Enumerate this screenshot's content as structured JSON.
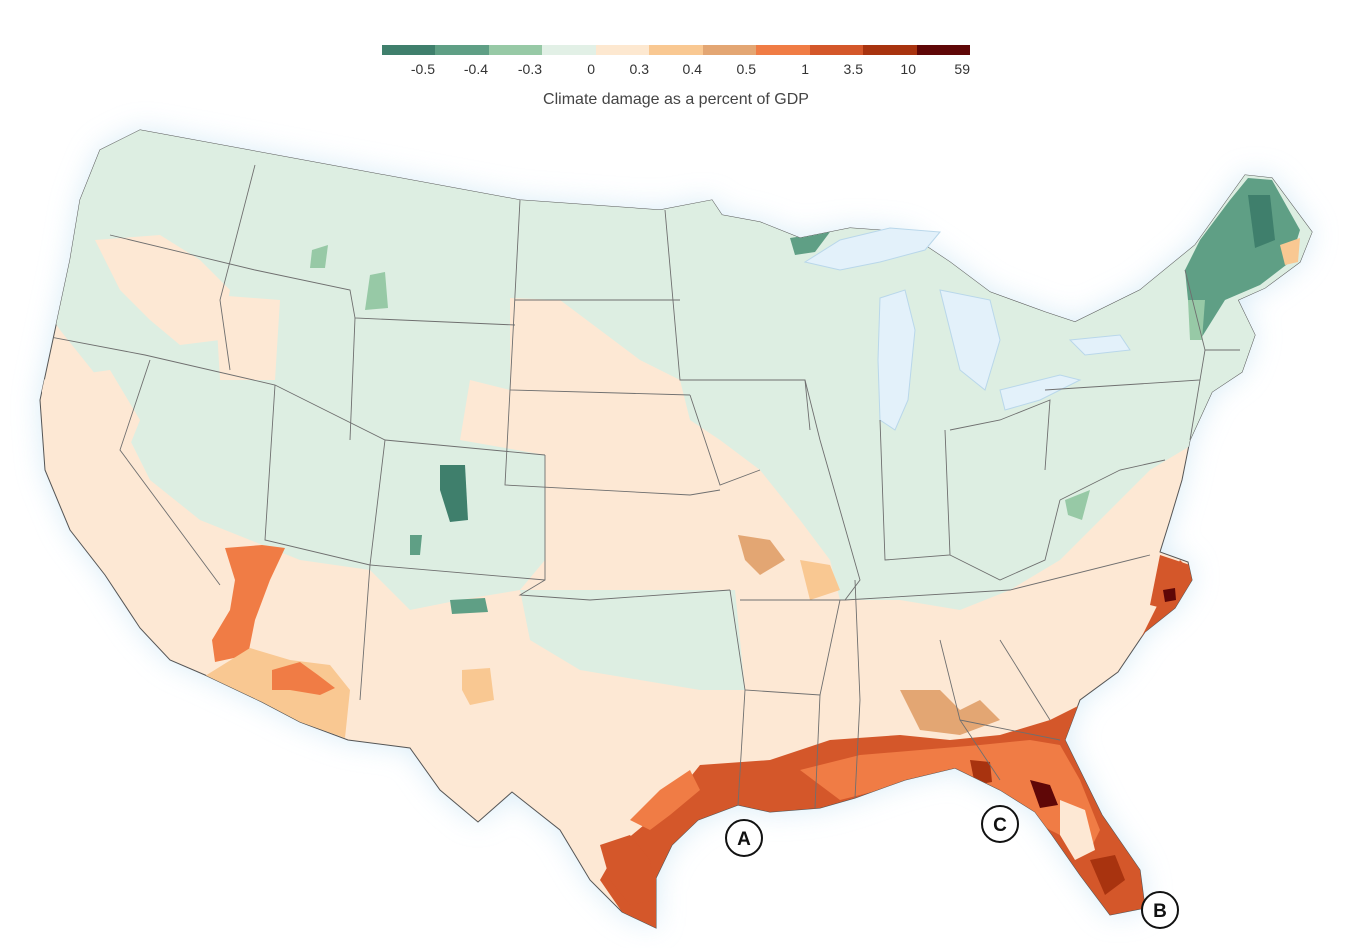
{
  "legend": {
    "caption": "Climate damage as a percent of GDP",
    "colors": [
      "#3f7f6c",
      "#5f9f85",
      "#97c9a6",
      "#e2f0e6",
      "#fde8d0",
      "#f9c892",
      "#e3a673",
      "#f07c45",
      "#d4572a",
      "#a8330f",
      "#5f0707"
    ],
    "ticks": [
      "-0.5",
      "-0.4",
      "-0.3",
      "0",
      "0.3",
      "0.4",
      "0.5",
      "1",
      "3.5",
      "10",
      "59"
    ]
  },
  "map": {
    "base_gain_color": "#ddeee2",
    "base_loss_color": "#fde8d4",
    "water_color": "#e3f1fa",
    "border_color": "#6f6f6f"
  },
  "markers": [
    {
      "id": "A",
      "label": "A"
    },
    {
      "id": "B",
      "label": "B"
    },
    {
      "id": "C",
      "label": "C"
    }
  ]
}
